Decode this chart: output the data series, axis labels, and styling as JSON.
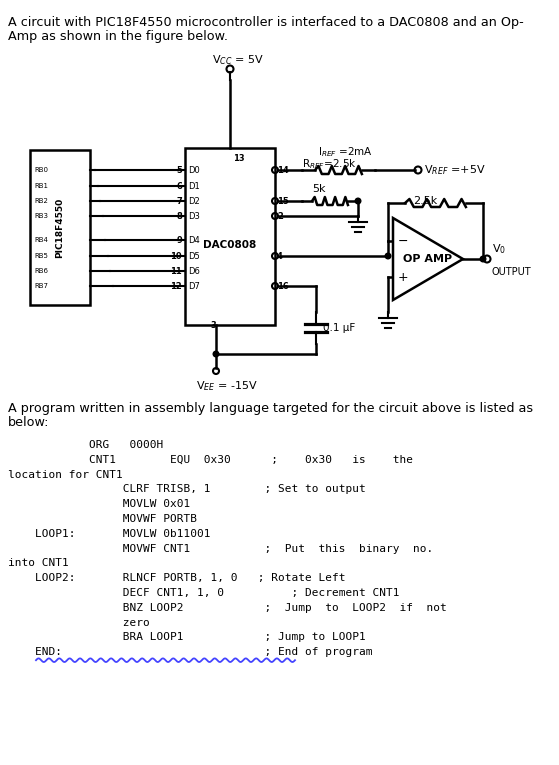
{
  "bg_color": "#ffffff",
  "text_color": "#000000",
  "title_line1": "A circuit with PIC18F4550 microcontroller is interfaced to a DAC0808 and an Op-",
  "title_line2": "Amp as shown in the figure below.",
  "intro_line1": "A program written in assembly language targeted for the circuit above is listed as",
  "intro_line2": "below:",
  "vcc_label": "V$_{CC}$ = 5V",
  "vee_label": "V$_{EE}$ = -15V",
  "iref_label": "I$_{REF}$ =2mA",
  "rref_label": "R$_{REF}$=2.5k",
  "vref_label": "V$_{REF}$ =+5V",
  "res5k_label": "5k",
  "res25k_label": "2.5k",
  "cap_label": "0.1 μF",
  "dac_label": "DAC0808",
  "pic_label": "PIC18F4550",
  "opamp_label": "OP AMP",
  "vo_label": "V$_0$",
  "output_label": "OUTPUT",
  "rb_labels": [
    "RB0",
    "RB1",
    "RB2",
    "RB3",
    "RB4",
    "RB5",
    "RB6",
    "RB7"
  ],
  "d_labels": [
    "D0",
    "D1",
    "D2",
    "D3",
    "D4",
    "D5",
    "D6",
    "D7"
  ],
  "left_pins": [
    "5",
    "6",
    "7",
    "8",
    "9",
    "10",
    "11",
    "12"
  ],
  "code_lines": [
    "            ORG   0000H",
    "            CNT1        EQU  0x30      ;    0x30   is    the",
    "location for CNT1",
    "                 CLRF TRISB, 1        ; Set to output",
    "                 MOVLW 0x01",
    "                 MOVWF PORTB",
    "    LOOP1:       MOVLW 0b11001",
    "                 MOVWF CNT1           ;  Put  this  binary  no.",
    "into CNT1",
    "    LOOP2:       RLNCF PORTB, 1, 0   ; Rotate Left",
    "                 DECF CNT1, 1, 0          ; Decrement CNT1",
    "                 BNZ LOOP2            ;  Jump  to  LOOP2  if  not",
    "                 zero",
    "                 BRA LOOP1            ; Jump to LOOP1",
    "    END:                              ; End of program"
  ]
}
